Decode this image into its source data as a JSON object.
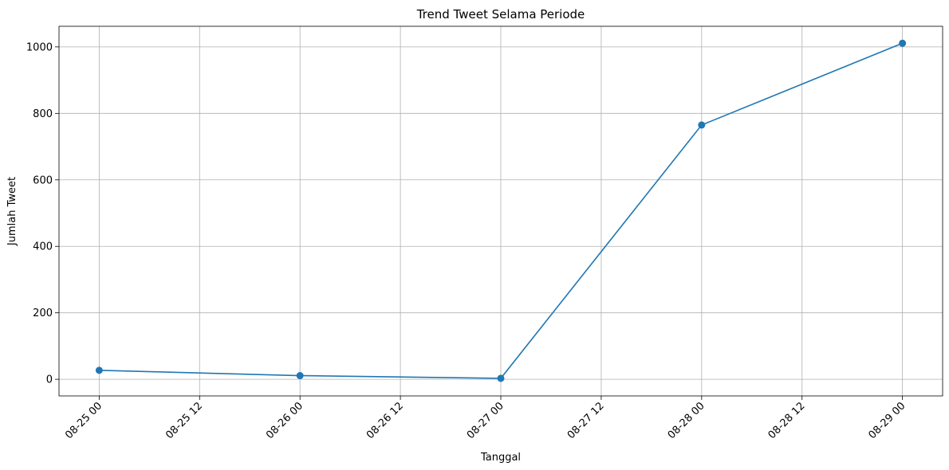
{
  "chart_data": {
    "type": "line",
    "title": "Trend Tweet Selama Periode",
    "xlabel": "Tanggal",
    "ylabel": "Jumlah Tweet",
    "x": [
      "2024-08-25T00:00",
      "2024-08-26T00:00",
      "2024-08-27T00:00",
      "2024-08-28T00:00",
      "2024-08-29T00:00"
    ],
    "series": [
      {
        "values": [
          27,
          11,
          3,
          765,
          1011
        ],
        "color": "#1f77b4",
        "marker": "circle"
      }
    ],
    "xlim": [
      "2024-08-24T19:12",
      "2024-08-29T04:48"
    ],
    "ylim": [
      -50,
      1062
    ],
    "x_ticks": [
      "08-25 00",
      "08-25 12",
      "08-26 00",
      "08-26 12",
      "08-27 00",
      "08-27 12",
      "08-28 00",
      "08-28 12",
      "08-29 00"
    ],
    "x_tick_values": [
      "2024-08-25T00:00",
      "2024-08-25T12:00",
      "2024-08-26T00:00",
      "2024-08-26T12:00",
      "2024-08-27T00:00",
      "2024-08-27T12:00",
      "2024-08-28T00:00",
      "2024-08-28T12:00",
      "2024-08-29T00:00"
    ],
    "y_ticks": [
      "0",
      "200",
      "400",
      "600",
      "800",
      "1000"
    ],
    "y_tick_values": [
      0,
      200,
      400,
      600,
      800,
      1000
    ],
    "x_tick_rotation": 45,
    "grid": true,
    "grid_color": "#b0b0b0",
    "axis_color": "#000000"
  }
}
